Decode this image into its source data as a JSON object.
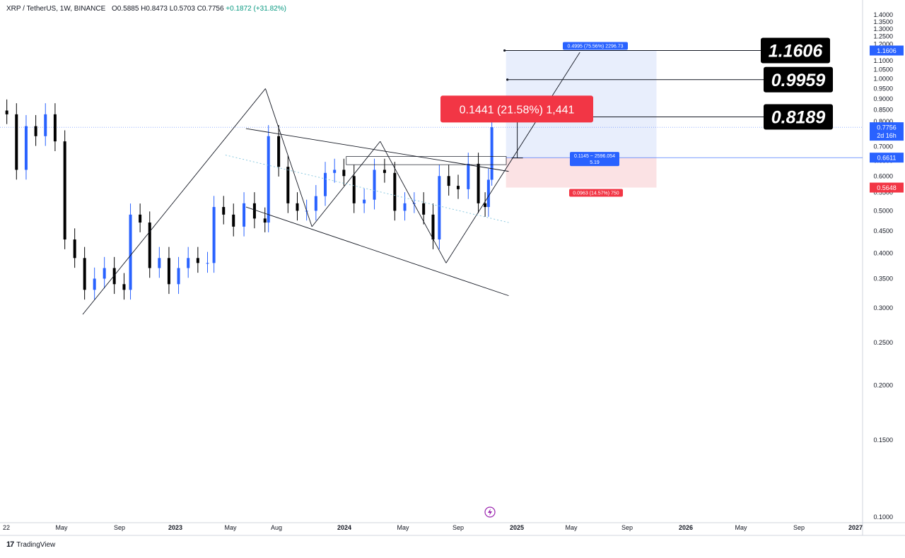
{
  "header": {
    "symbol": "XRP / TetherUS, 1W, BINANCE",
    "open": "O0.5885",
    "high": "H0.8473",
    "low": "L0.5703",
    "close": "C0.7756",
    "change": "+0.1872 (+31.82%)"
  },
  "brand": {
    "icon": "tradingview-logo-icon",
    "label": "TradingView"
  },
  "chart_data": {
    "type": "candlestick",
    "y_axis": {
      "scale": "log",
      "range": [
        0.1,
        1.4
      ],
      "ticks": [
        "1.4000",
        "1.3500",
        "1.3000",
        "1.2500",
        "1.2000",
        "1.1500",
        "1.1000",
        "1.0500",
        "1.0000",
        "0.9500",
        "0.9000",
        "0.8500",
        "0.8000",
        "0.7500",
        "0.7000",
        "0.6500",
        "0.6000",
        "0.5500",
        "0.5000",
        "0.4500",
        "0.4000",
        "0.3500",
        "0.3000",
        "0.2500",
        "0.2000",
        "0.1500",
        "0.1000"
      ]
    },
    "x_axis": {
      "labels": [
        {
          "t": "22",
          "date": "2022-01-01"
        },
        {
          "t": "May",
          "date": "2022-05-01"
        },
        {
          "t": "Sep",
          "date": "2022-09-01"
        },
        {
          "t": "2023",
          "date": "2023-01-01",
          "bold": true
        },
        {
          "t": "May",
          "date": "2023-05-01"
        },
        {
          "t": "Aug",
          "date": "2023-08-01"
        },
        {
          "t": "2024",
          "date": "2024-01-01",
          "bold": true
        },
        {
          "t": "May",
          "date": "2024-05-01"
        },
        {
          "t": "Sep",
          "date": "2024-09-01"
        },
        {
          "t": "2025",
          "date": "2025-01-01",
          "bold": true
        },
        {
          "t": "May",
          "date": "2025-05-01"
        },
        {
          "t": "Sep",
          "date": "2025-09-01"
        },
        {
          "t": "2026",
          "date": "2026-01-01",
          "bold": true
        },
        {
          "t": "May",
          "date": "2026-05-01"
        },
        {
          "t": "Sep",
          "date": "2026-09-01"
        },
        {
          "t": "2027",
          "date": "2027-01-01",
          "bold": true
        }
      ]
    },
    "series": [
      {
        "date": "2022-01-02",
        "close": 0.83
      },
      {
        "date": "2022-01-23",
        "close": 0.62
      },
      {
        "date": "2022-02-13",
        "close": 0.78
      },
      {
        "date": "2022-03-06",
        "close": 0.74
      },
      {
        "date": "2022-03-27",
        "close": 0.83
      },
      {
        "date": "2022-04-17",
        "close": 0.72
      },
      {
        "date": "2022-05-08",
        "close": 0.43
      },
      {
        "date": "2022-05-29",
        "close": 0.39
      },
      {
        "date": "2022-06-19",
        "close": 0.33
      },
      {
        "date": "2022-07-10",
        "close": 0.35
      },
      {
        "date": "2022-07-31",
        "close": 0.37
      },
      {
        "date": "2022-08-21",
        "close": 0.34
      },
      {
        "date": "2022-09-11",
        "close": 0.33
      },
      {
        "date": "2022-09-25",
        "close": 0.49
      },
      {
        "date": "2022-10-16",
        "close": 0.47
      },
      {
        "date": "2022-11-06",
        "close": 0.37
      },
      {
        "date": "2022-11-27",
        "close": 0.39
      },
      {
        "date": "2022-12-18",
        "close": 0.34
      },
      {
        "date": "2023-01-08",
        "close": 0.37
      },
      {
        "date": "2023-01-29",
        "close": 0.39
      },
      {
        "date": "2023-02-19",
        "close": 0.38
      },
      {
        "date": "2023-03-12",
        "close": 0.38
      },
      {
        "date": "2023-03-26",
        "close": 0.51
      },
      {
        "date": "2023-04-16",
        "close": 0.49
      },
      {
        "date": "2023-05-07",
        "close": 0.46
      },
      {
        "date": "2023-05-28",
        "close": 0.52
      },
      {
        "date": "2023-06-18",
        "close": 0.48
      },
      {
        "date": "2023-07-09",
        "close": 0.47
      },
      {
        "date": "2023-07-16",
        "close": 0.74
      },
      {
        "date": "2023-08-06",
        "close": 0.63
      },
      {
        "date": "2023-08-27",
        "close": 0.52
      },
      {
        "date": "2023-09-17",
        "close": 0.5
      },
      {
        "date": "2023-10-08",
        "close": 0.5
      },
      {
        "date": "2023-10-29",
        "close": 0.54
      },
      {
        "date": "2023-11-19",
        "close": 0.61
      },
      {
        "date": "2023-12-10",
        "close": 0.62
      },
      {
        "date": "2023-12-31",
        "close": 0.6
      },
      {
        "date": "2024-01-21",
        "close": 0.52
      },
      {
        "date": "2024-02-11",
        "close": 0.53
      },
      {
        "date": "2024-03-03",
        "close": 0.62
      },
      {
        "date": "2024-03-24",
        "close": 0.61
      },
      {
        "date": "2024-04-14",
        "close": 0.5
      },
      {
        "date": "2024-05-05",
        "close": 0.52
      },
      {
        "date": "2024-05-26",
        "close": 0.52
      },
      {
        "date": "2024-06-16",
        "close": 0.49
      },
      {
        "date": "2024-07-07",
        "close": 0.43
      },
      {
        "date": "2024-07-21",
        "close": 0.6
      },
      {
        "date": "2024-08-11",
        "close": 0.57
      },
      {
        "date": "2024-09-01",
        "close": 0.56
      },
      {
        "date": "2024-09-22",
        "close": 0.64
      },
      {
        "date": "2024-10-13",
        "close": 0.52
      },
      {
        "date": "2024-10-27",
        "close": 0.51
      },
      {
        "date": "2024-11-03",
        "close": 0.5885
      },
      {
        "date": "2024-11-10",
        "close": 0.7756
      }
    ],
    "current_price": "0.7756",
    "countdown": "2d 16h",
    "price_badges": [
      {
        "value": "1.1606",
        "kind": "target",
        "color": "#2962ff"
      },
      {
        "value": "0.6611",
        "kind": "entry",
        "color": "#2962ff"
      },
      {
        "value": "0.5648",
        "kind": "stop",
        "color": "#f23645"
      }
    ],
    "target_labels": [
      "1.1606",
      "0.9959",
      "0.8189"
    ],
    "annotations": {
      "measure": "0.1441 (21.58%) 1,441",
      "long_target": "0.4995 (75.56%) 2296.73",
      "long_entry_line1": "0.1145 ~ 2596.054",
      "long_entry_line2": "5.19",
      "long_stop": "0.0963 (14.57%) 750"
    },
    "colors": {
      "up": "#2962ff",
      "down": "#000000",
      "target_zone": "#e8eefc",
      "stop_zone": "#fbe2e4",
      "dotted_line": "#7ec3dc"
    }
  }
}
